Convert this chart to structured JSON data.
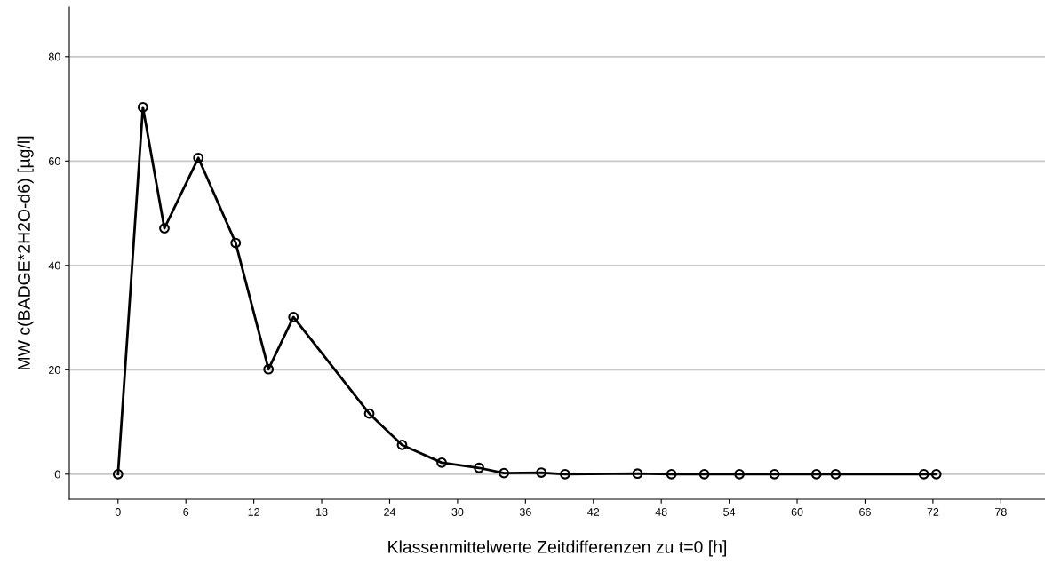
{
  "chart_data": {
    "type": "line",
    "xlabel": "Klassenmittelwerte Zeitdifferenzen zu t=0 [h]",
    "ylabel": "MW c(BADGE*2H2O-d6) [µg/l]",
    "x": [
      0,
      2.2,
      4.1,
      7.1,
      10.4,
      13.3,
      15.5,
      22.2,
      25.1,
      28.6,
      31.9,
      34.1,
      37.4,
      39.5,
      45.9,
      48.9,
      51.8,
      54.9,
      58.0,
      61.7,
      63.4,
      71.2,
      72.3
    ],
    "values": [
      0,
      70.3,
      47.1,
      60.6,
      44.3,
      20.1,
      30.1,
      11.6,
      5.6,
      2.2,
      1.2,
      0.2,
      0.3,
      0,
      0.1,
      0,
      0,
      0,
      0,
      0,
      0,
      0,
      0
    ],
    "color": "#000000",
    "marker": "circle",
    "line_style": "solid",
    "xlim": [
      -4.3,
      81.9
    ],
    "ylim": [
      -4.8,
      89.5
    ],
    "xticks": [
      0,
      6,
      12,
      18,
      24,
      30,
      36,
      42,
      48,
      54,
      60,
      66,
      72,
      78
    ],
    "yticks": [
      0,
      20,
      40,
      60,
      80
    ],
    "grid": "y",
    "legend": false
  }
}
